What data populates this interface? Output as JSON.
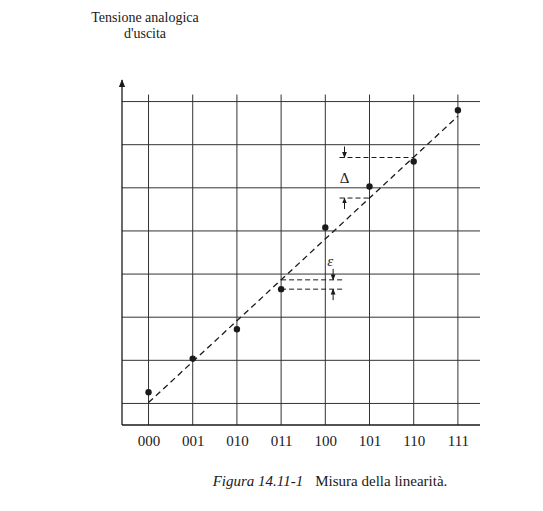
{
  "chart_data": {
    "type": "scatter",
    "y_label": [
      "Tensione analogica",
      "d'uscita"
    ],
    "figure_label": "Figura 14.11-1",
    "title": "Misura della linearità.",
    "categories": [
      "000",
      "001",
      "010",
      "011",
      "100",
      "101",
      "110",
      "111"
    ],
    "values": [
      0.26,
      1.04,
      1.72,
      2.65,
      4.08,
      5.03,
      5.61,
      6.8
    ],
    "color": "#1a1a1a",
    "marker": "circle",
    "ideal_line": {
      "categories": [
        "000",
        "111"
      ],
      "values": [
        0.02,
        6.66
      ],
      "line_style": "dashed"
    },
    "annotations": [
      "Δ",
      "ε"
    ],
    "ylim": [
      -0.5,
      7.5
    ],
    "yticks": [
      0,
      1,
      2,
      3,
      4,
      5,
      6,
      7
    ],
    "grid": true,
    "tick_labels": "x"
  }
}
